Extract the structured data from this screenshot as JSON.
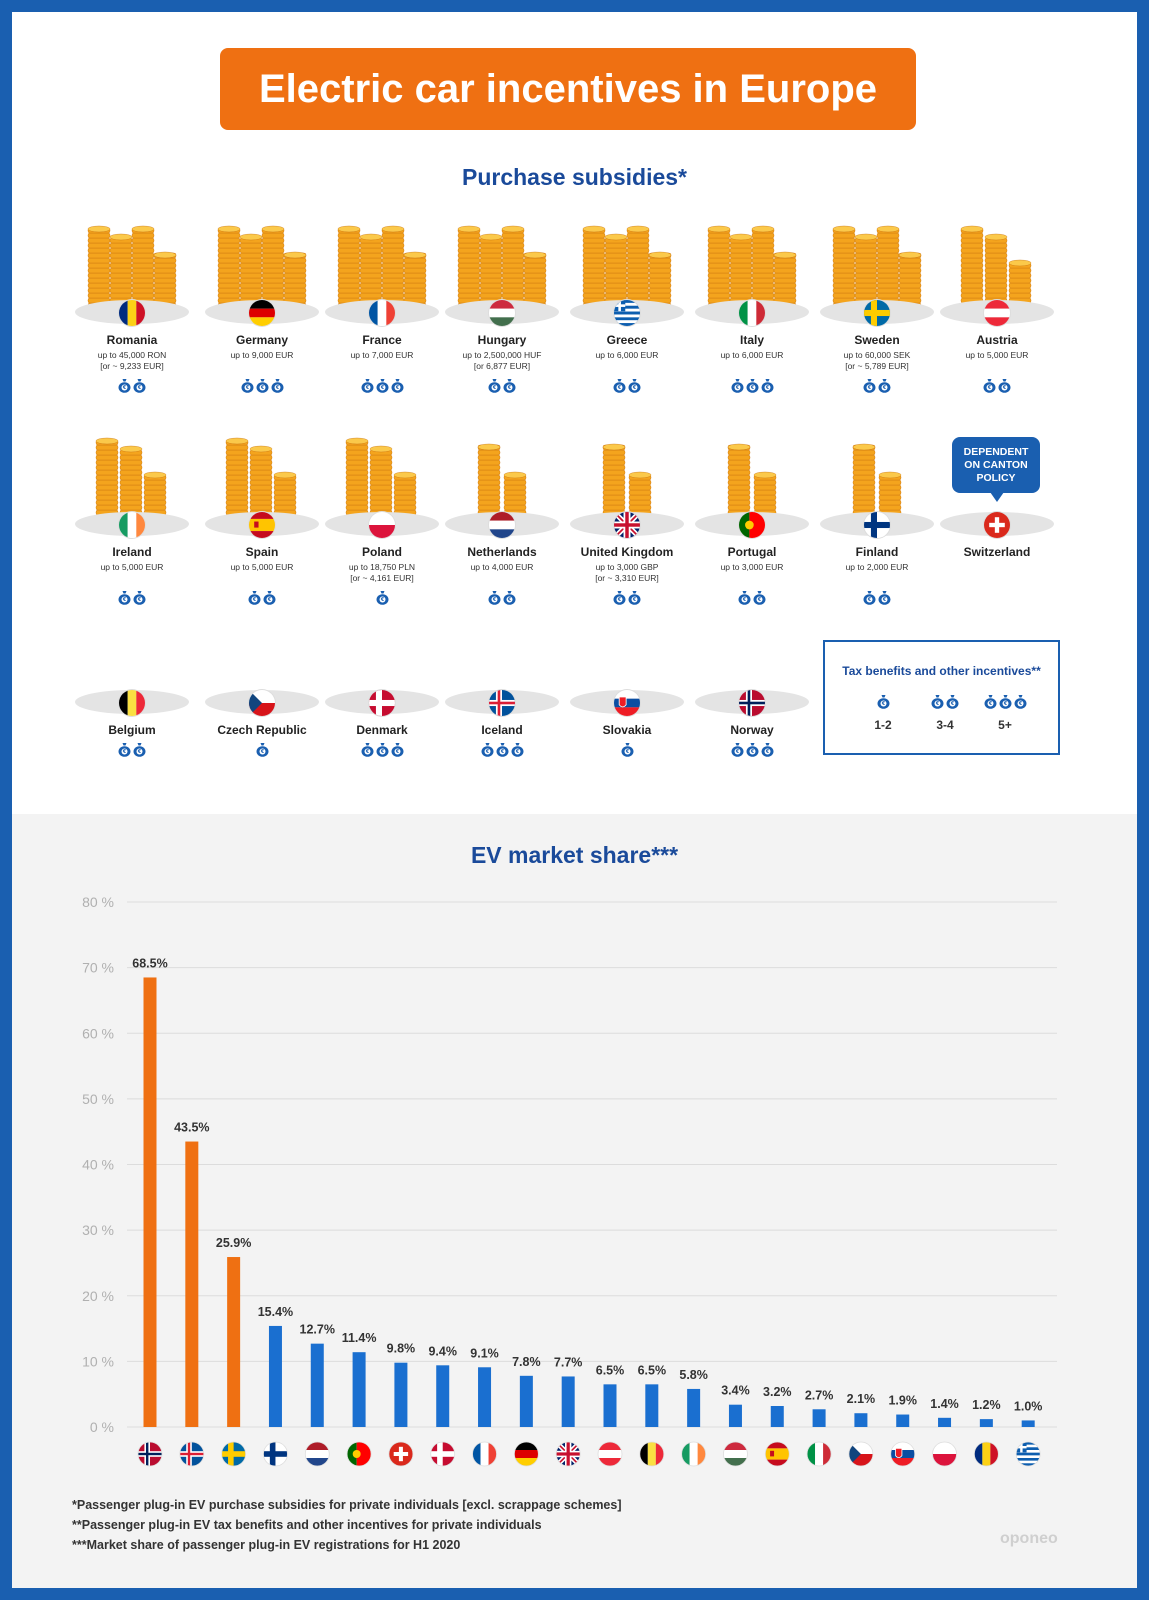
{
  "title": "Electric car incentives in Europe",
  "subsidies_title": "Purchase subsidies*",
  "market_title": "EV market share***",
  "callout": {
    "line1": "DEPENDENT",
    "line2": "ON CANTON",
    "line3": "POLICY"
  },
  "legend": {
    "title": "Tax benefits and other incentives**",
    "items": [
      {
        "bags": 1,
        "label": "1-2"
      },
      {
        "bags": 2,
        "label": "3-4"
      },
      {
        "bags": 3,
        "label": "5+"
      }
    ]
  },
  "countries": [
    {
      "name": "Romania",
      "amount": "up to 45,000 RON",
      "amount2": "[or ~ 9,233 EUR]",
      "bags": 2,
      "coins": 4,
      "flag": "ro"
    },
    {
      "name": "Germany",
      "amount": "up to 9,000 EUR",
      "amount2": "",
      "bags": 3,
      "coins": 4,
      "flag": "de"
    },
    {
      "name": "France",
      "amount": "up to 7,000 EUR",
      "amount2": "",
      "bags": 3,
      "coins": 4,
      "flag": "fr"
    },
    {
      "name": "Hungary",
      "amount": "up to 2,500,000 HUF",
      "amount2": "[or 6,877 EUR]",
      "bags": 2,
      "coins": 4,
      "flag": "hu"
    },
    {
      "name": "Greece",
      "amount": "up to 6,000 EUR",
      "amount2": "",
      "bags": 2,
      "coins": 4,
      "flag": "gr"
    },
    {
      "name": "Italy",
      "amount": "up to 6,000 EUR",
      "amount2": "",
      "bags": 3,
      "coins": 4,
      "flag": "it"
    },
    {
      "name": "Sweden",
      "amount": "up to 60,000 SEK",
      "amount2": "[or ~ 5,789 EUR]",
      "bags": 2,
      "coins": 4,
      "flag": "se"
    },
    {
      "name": "Austria",
      "amount": "up to 5,000 EUR",
      "amount2": "",
      "bags": 2,
      "coins": 3,
      "flag": "at"
    },
    {
      "name": "Ireland",
      "amount": "up to 5,000 EUR",
      "amount2": "",
      "bags": 2,
      "coins": 3,
      "flag": "ie"
    },
    {
      "name": "Spain",
      "amount": "up to 5,000 EUR",
      "amount2": "",
      "bags": 2,
      "coins": 3,
      "flag": "es"
    },
    {
      "name": "Poland",
      "amount": "up to 18,750 PLN",
      "amount2": "[or ~ 4,161 EUR]",
      "bags": 1,
      "coins": 3,
      "flag": "pl"
    },
    {
      "name": "Netherlands",
      "amount": "up to 4,000 EUR",
      "amount2": "",
      "bags": 2,
      "coins": 2,
      "flag": "nl"
    },
    {
      "name": "United Kingdom",
      "amount": "up to 3,000 GBP",
      "amount2": "[or ~ 3,310 EUR]",
      "bags": 2,
      "coins": 2,
      "flag": "gb"
    },
    {
      "name": "Portugal",
      "amount": "up to 3,000 EUR",
      "amount2": "",
      "bags": 2,
      "coins": 2,
      "flag": "pt"
    },
    {
      "name": "Finland",
      "amount": "up to 2,000 EUR",
      "amount2": "",
      "bags": 2,
      "coins": 2,
      "flag": "fi"
    },
    {
      "name": "Switzerland",
      "amount": "",
      "amount2": "",
      "bags": 0,
      "coins": 0,
      "flag": "ch"
    },
    {
      "name": "Belgium",
      "amount": "",
      "amount2": "",
      "bags": 2,
      "coins": 0,
      "flag": "be"
    },
    {
      "name": "Czech Republic",
      "amount": "",
      "amount2": "",
      "bags": 1,
      "coins": 0,
      "flag": "cz"
    },
    {
      "name": "Denmark",
      "amount": "",
      "amount2": "",
      "bags": 3,
      "coins": 0,
      "flag": "dk"
    },
    {
      "name": "Iceland",
      "amount": "",
      "amount2": "",
      "bags": 3,
      "coins": 0,
      "flag": "is"
    },
    {
      "name": "Slovakia",
      "amount": "",
      "amount2": "",
      "bags": 1,
      "coins": 0,
      "flag": "sk"
    },
    {
      "name": "Norway",
      "amount": "",
      "amount2": "",
      "bags": 3,
      "coins": 0,
      "flag": "no"
    }
  ],
  "chart_data": {
    "type": "bar",
    "ylim": [
      0,
      80
    ],
    "yticks": [
      "0 %",
      "10 %",
      "20 %",
      "30 %",
      "40 %",
      "50 %",
      "60 %",
      "70 %",
      "80 %"
    ],
    "grid": true,
    "categories": [
      "no",
      "is",
      "se",
      "fi",
      "nl",
      "pt",
      "ch",
      "dk",
      "fr",
      "de",
      "gb",
      "at",
      "be",
      "ie",
      "hu",
      "es",
      "it",
      "cz",
      "sk",
      "pl",
      "ro",
      "gr"
    ],
    "values": [
      68.5,
      43.5,
      25.9,
      15.4,
      12.7,
      11.4,
      9.8,
      9.4,
      9.1,
      7.8,
      7.7,
      6.5,
      6.5,
      5.8,
      3.4,
      3.2,
      2.7,
      2.1,
      1.9,
      1.4,
      1.2,
      1.0
    ],
    "labels": [
      "68.5%",
      "43.5%",
      "25.9%",
      "15.4%",
      "12.7%",
      "11.4%",
      "9.8%",
      "9.4%",
      "9.1%",
      "7.8%",
      "7.7%",
      "6.5%",
      "6.5%",
      "5.8%",
      "3.4%",
      "3.2%",
      "2.7%",
      "2.1%",
      "1.9%",
      "1.4%",
      "1.2%",
      "1.0%"
    ],
    "colors": {
      "highlight": "#ef7012",
      "normal": "#1a6fd0"
    },
    "highlight_count": 3
  },
  "footnotes": [
    "*Passenger plug-in EV purchase subsidies for private individuals [excl. scrappage schemes]",
    "**Passenger plug-in EV tax benefits and other incentives for private individuals",
    "***Market share of passenger plug-in EV registrations for H1 2020"
  ],
  "brand": "oponeo"
}
